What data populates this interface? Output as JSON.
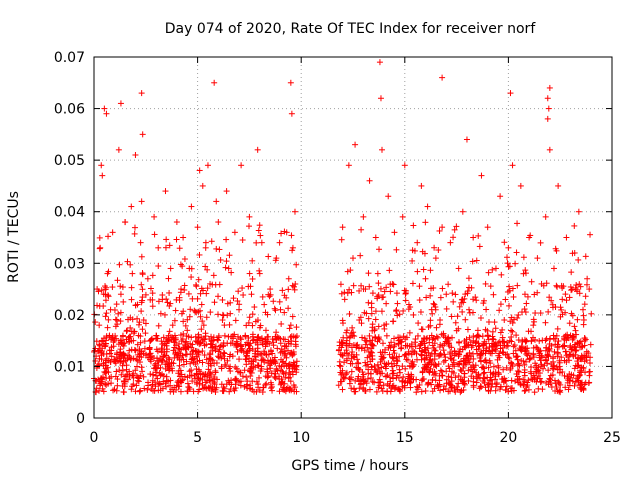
{
  "chart_data": {
    "type": "scatter",
    "title": "Day 074 of 2020, Rate Of TEC Index for receiver norf",
    "xlabel": "GPS time / hours",
    "ylabel": "ROTI / TECUs",
    "xlim": [
      0,
      25
    ],
    "ylim": [
      0,
      0.07
    ],
    "x_ticks": [
      0,
      5,
      10,
      15,
      20,
      25
    ],
    "x_tick_labels": [
      "0",
      "5",
      "10",
      "15",
      "20",
      "25"
    ],
    "y_ticks": [
      0,
      0.01,
      0.02,
      0.03,
      0.04,
      0.05,
      0.06,
      0.07
    ],
    "y_tick_labels": [
      "0",
      "0.01",
      "0.02",
      "0.03",
      "0.04",
      "0.05",
      "0.06",
      "0.07"
    ],
    "grid": true,
    "marker": "plus",
    "series_color": "#ff0000",
    "data_gap_hours": [
      9.8,
      11.8
    ],
    "series": [
      {
        "name": "ROTI",
        "x": [
          0.1,
          0.15,
          0.25,
          0.3,
          0.35,
          0.4,
          0.55,
          0.6,
          0.65,
          0.75,
          0.8,
          0.9,
          1.0,
          1.1,
          1.2,
          1.3,
          1.35,
          1.5,
          1.6,
          1.7,
          1.8,
          1.85,
          1.9,
          2.0,
          2.1,
          2.2,
          2.25,
          2.3,
          2.4,
          2.6,
          2.75,
          2.9,
          3.0,
          3.1,
          3.3,
          3.45,
          3.5,
          3.7,
          3.8,
          4.0,
          4.1,
          4.2,
          4.3,
          4.5,
          4.6,
          4.7,
          4.9,
          5.0,
          5.1,
          5.2,
          5.25,
          5.3,
          5.4,
          5.5,
          5.6,
          5.7,
          5.9,
          6.0,
          6.2,
          6.4,
          6.5,
          6.7,
          6.8,
          7.0,
          7.1,
          7.3,
          7.5,
          7.6,
          7.8,
          7.9,
          8.0,
          8.1,
          8.3,
          8.5,
          8.7,
          8.8,
          9.0,
          9.2,
          9.3,
          9.4,
          9.5,
          9.6,
          9.7,
          12.0,
          12.1,
          12.2,
          12.3,
          12.5,
          12.6,
          12.8,
          13.0,
          13.1,
          13.3,
          13.5,
          13.6,
          13.7,
          13.9,
          14.0,
          14.2,
          14.4,
          14.5,
          14.7,
          14.9,
          15.0,
          15.2,
          15.4,
          15.6,
          15.8,
          16.0,
          16.1,
          16.3,
          16.5,
          16.7,
          16.8,
          17.0,
          17.2,
          17.4,
          17.6,
          17.8,
          18.0,
          18.1,
          18.3,
          18.5,
          18.7,
          18.9,
          19.0,
          19.2,
          19.4,
          19.6,
          19.8,
          20.0,
          20.2,
          20.4,
          20.6,
          20.8,
          21.0,
          21.2,
          21.4,
          21.6,
          21.8,
          21.9,
          22.0,
          22.2,
          22.4,
          22.6,
          22.8,
          23.0,
          23.2,
          23.4,
          23.6,
          23.8,
          23.9,
          0.5,
          0.6,
          1.3,
          2.3,
          2.35,
          5.8,
          9.5,
          9.55,
          13.8,
          13.85,
          16.8,
          20.1,
          21.9,
          22.0,
          21.95
        ],
        "y": [
          0.012,
          0.025,
          0.018,
          0.033,
          0.049,
          0.047,
          0.014,
          0.009,
          0.028,
          0.016,
          0.021,
          0.036,
          0.011,
          0.019,
          0.052,
          0.024,
          0.012,
          0.038,
          0.017,
          0.009,
          0.041,
          0.028,
          0.015,
          0.051,
          0.022,
          0.013,
          0.034,
          0.042,
          0.019,
          0.027,
          0.011,
          0.039,
          0.016,
          0.033,
          0.023,
          0.044,
          0.014,
          0.029,
          0.018,
          0.038,
          0.012,
          0.025,
          0.035,
          0.017,
          0.029,
          0.041,
          0.013,
          0.037,
          0.048,
          0.022,
          0.045,
          0.018,
          0.034,
          0.049,
          0.026,
          0.015,
          0.042,
          0.038,
          0.019,
          0.044,
          0.029,
          0.012,
          0.036,
          0.021,
          0.049,
          0.016,
          0.039,
          0.024,
          0.013,
          0.052,
          0.028,
          0.034,
          0.017,
          0.025,
          0.011,
          0.031,
          0.021,
          0.014,
          0.036,
          0.027,
          0.018,
          0.033,
          0.04,
          0.037,
          0.023,
          0.015,
          0.049,
          0.031,
          0.053,
          0.019,
          0.039,
          0.025,
          0.046,
          0.014,
          0.035,
          0.028,
          0.052,
          0.018,
          0.043,
          0.026,
          0.036,
          0.015,
          0.039,
          0.049,
          0.022,
          0.013,
          0.034,
          0.045,
          0.027,
          0.041,
          0.016,
          0.031,
          0.019,
          0.037,
          0.024,
          0.034,
          0.013,
          0.029,
          0.04,
          0.054,
          0.021,
          0.035,
          0.016,
          0.047,
          0.026,
          0.037,
          0.014,
          0.029,
          0.043,
          0.019,
          0.033,
          0.049,
          0.012,
          0.045,
          0.024,
          0.035,
          0.018,
          0.031,
          0.026,
          0.039,
          0.058,
          0.052,
          0.029,
          0.045,
          0.023,
          0.035,
          0.016,
          0.032,
          0.04,
          0.021,
          0.027,
          0.025,
          0.06,
          0.059,
          0.061,
          0.063,
          0.055,
          0.065,
          0.065,
          0.059,
          0.069,
          0.062,
          0.066,
          0.063,
          0.062,
          0.064,
          0.06
        ]
      }
    ]
  }
}
